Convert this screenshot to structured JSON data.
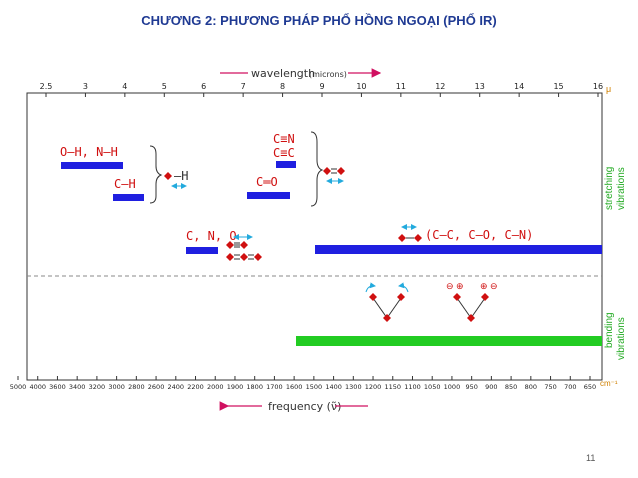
{
  "title": "CHƯƠNG 2: PHƯƠNG PHÁP PHỔ HỒNG NGOẠI (PHỔ IR)",
  "page_number": "11",
  "colors": {
    "blue": "#1f1fe0",
    "green": "#22cc22",
    "red": "#d01010",
    "cyan": "#22aadd",
    "axis": "#333333",
    "green_text": "#22aa22"
  },
  "wavelength": {
    "label": "wavelength",
    "unit": "(microns)",
    "ticks": [
      "2.5",
      "3",
      "4",
      "5",
      "6",
      "7",
      "8",
      "9",
      "10",
      "11",
      "12",
      "13",
      "14",
      "15",
      "16"
    ],
    "unit_symbol": "μ"
  },
  "frequency": {
    "label": "frequency (ν̃)",
    "unit_symbol": "cm⁻¹",
    "ticks": [
      "5000",
      "4000",
      "3600",
      "3400",
      "3200",
      "3000",
      "2800",
      "2600",
      "2400",
      "2200",
      "2000",
      "1900",
      "1800",
      "1700",
      "1600",
      "1500",
      "1400",
      "1300",
      "1200",
      "1150",
      "1100",
      "1050",
      "1000",
      "950",
      "900",
      "850",
      "800",
      "750",
      "700",
      "650"
    ]
  },
  "regions": {
    "stretching": {
      "line1": "stretching",
      "line2": "vibrations"
    },
    "bending": {
      "line1": "bending",
      "line2": "vibrations"
    }
  },
  "labels": {
    "oh_nh": "O—H, N—H",
    "ch": "C—H",
    "h_bond": "—H",
    "cn_triple": "C≡N",
    "cc_triple": "C≡C",
    "co_double": "C═O",
    "cno": "C, N, O",
    "single_bonds": "(C—C, C—O, C—N)",
    "minus": "⊖",
    "plus": "⊕"
  }
}
